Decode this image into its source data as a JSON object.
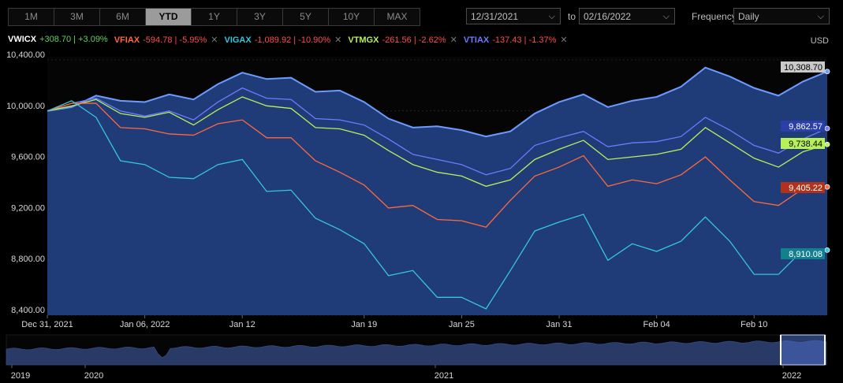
{
  "toolbar": {
    "ranges": [
      {
        "label": "1M",
        "active": false
      },
      {
        "label": "3M",
        "active": false
      },
      {
        "label": "6M",
        "active": false
      },
      {
        "label": "YTD",
        "active": true
      },
      {
        "label": "1Y",
        "active": false
      },
      {
        "label": "3Y",
        "active": false
      },
      {
        "label": "5Y",
        "active": false
      },
      {
        "label": "10Y",
        "active": false
      },
      {
        "label": "MAX",
        "active": false
      }
    ],
    "start_date": "12/31/2021",
    "to_label": "to",
    "end_date": "02/16/2022",
    "frequency_label": "Frequency",
    "frequency_value": "Daily",
    "currency": "USD"
  },
  "legend": [
    {
      "ticker": "VWICX",
      "change": "+308.70 | +3.09%",
      "color": "#5b8cff",
      "ticker_color": "#ffffff",
      "change_color": "#5fd35f",
      "removable": false
    },
    {
      "ticker": "VFIAX",
      "change": "-594.78 | -5.95%",
      "color": "#ff6a3d",
      "ticker_color": "#ff6a3d",
      "change_color": "#ff4d4d",
      "removable": true
    },
    {
      "ticker": "VIGAX",
      "change": "-1,089.92 | -10.90%",
      "color": "#35c6e0",
      "ticker_color": "#35c6e0",
      "change_color": "#ff4d4d",
      "removable": true
    },
    {
      "ticker": "VTMGX",
      "change": "-261.56 | -2.62%",
      "color": "#b8f05a",
      "ticker_color": "#b8f05a",
      "change_color": "#ff4d4d",
      "removable": true
    },
    {
      "ticker": "VTIAX",
      "change": "-137.43 | -1.37%",
      "color": "#6d7bff",
      "ticker_color": "#6d7bff",
      "change_color": "#ff4d4d",
      "removable": true
    }
  ],
  "chart_data": {
    "type": "line",
    "x": [
      "Dec 31",
      "Jan 03",
      "Jan 04",
      "Jan 05",
      "Jan 06",
      "Jan 07",
      "Jan 10",
      "Jan 11",
      "Jan 12",
      "Jan 13",
      "Jan 14",
      "Jan 18",
      "Jan 19",
      "Jan 20",
      "Jan 21",
      "Jan 24",
      "Jan 25",
      "Jan 26",
      "Jan 27",
      "Jan 28",
      "Jan 31",
      "Feb 01",
      "Feb 02",
      "Feb 03",
      "Feb 04",
      "Feb 07",
      "Feb 08",
      "Feb 09",
      "Feb 10",
      "Feb 11",
      "Feb 14",
      "Feb 15",
      "Feb 16"
    ],
    "xticks": [
      "Dec 31, 2021",
      "Jan 06, 2022",
      "Jan 12",
      "Jan 19",
      "Jan 25",
      "Jan 31",
      "Feb 04",
      "Feb 10"
    ],
    "xtick_index": [
      0,
      4,
      8,
      13,
      17,
      21,
      25,
      29
    ],
    "ylim": [
      8400,
      10400
    ],
    "yticks": [
      8400,
      8800,
      9200,
      9600,
      10000,
      10400
    ],
    "ytick_labels": [
      "8,400.00",
      "8,800.00",
      "9,200.00",
      "9,600.00",
      "10,000.00",
      "10,400.00"
    ],
    "series": [
      {
        "name": "VWICX",
        "color": "#6c9cff",
        "fill": true,
        "end_label": "10,308.70",
        "tag_bg": "#c9c9c9",
        "tag_fg": "#000000",
        "values": [
          10000,
          10030,
          10120,
          10080,
          10070,
          10130,
          10090,
          10210,
          10300,
          10250,
          10260,
          10150,
          10160,
          10070,
          9940,
          9870,
          9880,
          9850,
          9800,
          9840,
          9980,
          10070,
          10130,
          10030,
          10080,
          10110,
          10190,
          10340,
          10270,
          10180,
          10120,
          10230,
          10309
        ]
      },
      {
        "name": "VTIAX",
        "color": "#6d7bff",
        "fill": false,
        "end_label": "9,862.57",
        "tag_bg": "#2a3fa8",
        "tag_fg": "#ffffff",
        "values": [
          10000,
          10060,
          10100,
          10000,
          9960,
          10000,
          9930,
          10070,
          10180,
          10100,
          10090,
          9940,
          9930,
          9890,
          9780,
          9660,
          9620,
          9580,
          9500,
          9550,
          9730,
          9790,
          9840,
          9720,
          9750,
          9760,
          9800,
          9950,
          9850,
          9730,
          9670,
          9780,
          9863
        ]
      },
      {
        "name": "VTMGX",
        "color": "#b8f05a",
        "fill": false,
        "end_label": "9,738.44",
        "tag_bg": "#b8f05a",
        "tag_fg": "#000000",
        "values": [
          10000,
          10040,
          10090,
          9980,
          9950,
          9990,
          9890,
          10010,
          10110,
          10040,
          10020,
          9870,
          9860,
          9810,
          9690,
          9580,
          9520,
          9490,
          9410,
          9460,
          9620,
          9700,
          9770,
          9620,
          9640,
          9660,
          9700,
          9870,
          9750,
          9630,
          9560,
          9680,
          9738
        ]
      },
      {
        "name": "VFIAX",
        "color": "#ff6a3d",
        "fill": false,
        "end_label": "9,405.22",
        "tag_bg": "#b0321c",
        "tag_fg": "#ffffff",
        "values": [
          10000,
          10060,
          10060,
          9870,
          9860,
          9820,
          9810,
          9900,
          9930,
          9790,
          9790,
          9610,
          9520,
          9420,
          9240,
          9260,
          9150,
          9140,
          9090,
          9300,
          9490,
          9560,
          9650,
          9410,
          9460,
          9430,
          9500,
          9640,
          9460,
          9290,
          9260,
          9390,
          9405
        ]
      },
      {
        "name": "VIGAX",
        "color": "#35c6e0",
        "fill": false,
        "end_label": "8,910.08",
        "tag_bg": "#11808f",
        "tag_fg": "#ffffff",
        "values": [
          10000,
          10080,
          9950,
          9610,
          9580,
          9480,
          9470,
          9580,
          9620,
          9370,
          9380,
          9160,
          9070,
          8960,
          8710,
          8750,
          8540,
          8540,
          8450,
          8750,
          9060,
          9130,
          9190,
          8830,
          8960,
          8900,
          8980,
          9170,
          8980,
          8720,
          8720,
          8910,
          8910
        ]
      }
    ]
  },
  "navigator": {
    "labels": [
      "2019",
      "2020",
      "2021",
      "2022"
    ]
  }
}
